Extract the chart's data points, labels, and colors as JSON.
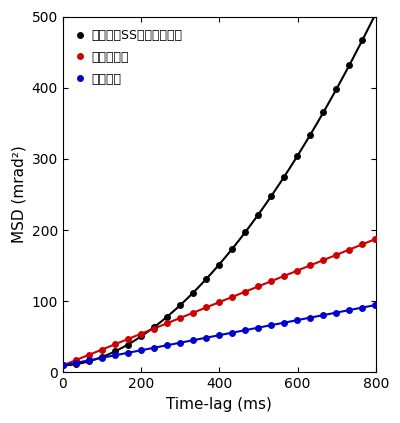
{
  "title": "",
  "xlabel": "Time-lag (ms)",
  "ylabel": "MSD (mrad²)",
  "xlim": [
    0,
    800
  ],
  "ylim": [
    0,
    500
  ],
  "xticks": [
    0,
    200,
    400,
    600,
    800
  ],
  "yticks": [
    0,
    100,
    200,
    300,
    400,
    500
  ],
  "background_color": "#ffffff",
  "series": [
    {
      "label": "変性してSS結合をはずす",
      "color": "#000000",
      "intercept": 10.0,
      "slope": 0.00294,
      "alpha": 1.8
    },
    {
      "label": "変性させる",
      "color": "#cc0000",
      "intercept": 10.0,
      "slope": 0.222,
      "alpha": 1.0
    },
    {
      "label": "自然状態",
      "color": "#0000cc",
      "intercept": 10.0,
      "slope": 0.106,
      "alpha": 1.0
    }
  ],
  "dot_interval_ms": 33.3,
  "marker_size": 5,
  "line_width": 1.5
}
